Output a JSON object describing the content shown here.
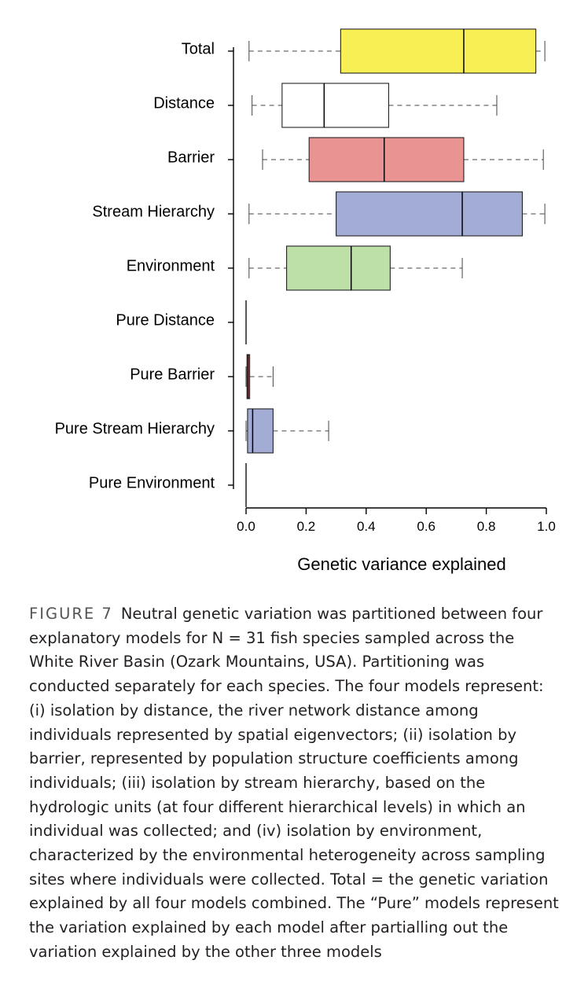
{
  "chart_data": {
    "type": "boxplot",
    "orientation": "horizontal",
    "xlabel": "Genetic variance explained",
    "xlim": [
      0.0,
      1.0
    ],
    "xticks": [
      "0.0",
      "0.2",
      "0.4",
      "0.6",
      "0.8",
      "1.0"
    ],
    "grid": false,
    "categories": [
      {
        "label": "Total",
        "color": "#f7ef53",
        "min": 0.01,
        "q1": 0.315,
        "median": 0.725,
        "q3": 0.965,
        "max": 0.995
      },
      {
        "label": "Distance",
        "color": "#ffffff",
        "min": 0.02,
        "q1": 0.12,
        "median": 0.26,
        "q3": 0.475,
        "max": 0.835
      },
      {
        "label": "Barrier",
        "color": "#e99493",
        "min": 0.055,
        "q1": 0.21,
        "median": 0.46,
        "q3": 0.725,
        "max": 0.99
      },
      {
        "label": "Stream Hierarchy",
        "color": "#a2acd4",
        "min": 0.01,
        "q1": 0.3,
        "median": 0.72,
        "q3": 0.92,
        "max": 0.995
      },
      {
        "label": "Environment",
        "color": "#bde0a7",
        "min": 0.01,
        "q1": 0.135,
        "median": 0.35,
        "q3": 0.48,
        "max": 0.72
      },
      {
        "label": "Pure Distance",
        "color": "#ffffff",
        "min": 0.0,
        "q1": 0.0,
        "median": 0.0,
        "q3": 0.0,
        "max": 0.0
      },
      {
        "label": "Pure Barrier",
        "color": "#e99493",
        "min": 0.0,
        "q1": 0.003,
        "median": 0.007,
        "q3": 0.012,
        "max": 0.09
      },
      {
        "label": "Pure Stream Hierarchy",
        "color": "#a2acd4",
        "min": 0.0,
        "q1": 0.005,
        "median": 0.022,
        "q3": 0.09,
        "max": 0.275
      },
      {
        "label": "Pure Environment",
        "color": "#ffffff",
        "min": 0.0,
        "q1": 0.0,
        "median": 0.0,
        "q3": 0.0,
        "max": 0.0
      }
    ]
  },
  "caption": {
    "label": "FIGURE 7",
    "text": "Neutral genetic variation was partitioned between four explanatory models for N = 31 fish species sampled across the White River Basin (Ozark Mountains, USA). Partitioning was conducted separately for each species. The four models represent: (i) isolation by distance, the river network distance among individuals represented by spatial eigenvectors; (ii) isolation by barrier, represented by population structure coefficients among individuals; (iii) isolation by stream hierarchy, based on the hydrologic units (at four different hierarchical levels) in which an individual was collected; and (iv) isolation by environment, characterized by the environmental heterogeneity across sampling sites where individuals were collected. Total = the genetic variation explained by all four models combined. The “Pure” models represent the variation explained by each model after partialling out the variation explained by the other three models"
  }
}
